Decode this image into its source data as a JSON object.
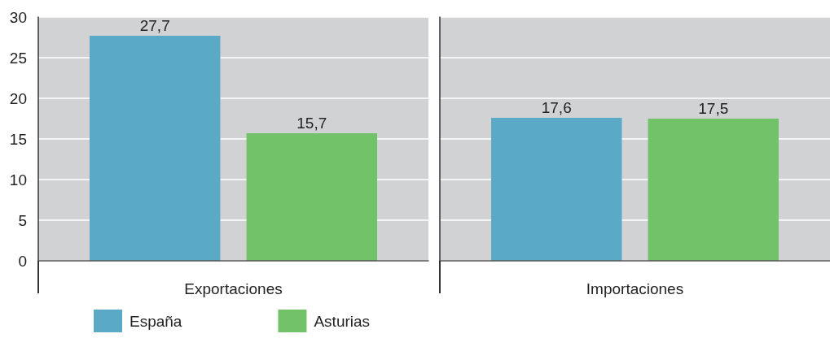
{
  "chart_data": {
    "type": "bar",
    "categories": [
      "Exportaciones",
      "Importaciones"
    ],
    "series": [
      {
        "name": "España",
        "color": "#5aa9c6",
        "values": [
          27.7,
          17.6
        ],
        "value_labels": [
          "27,7",
          "17,6"
        ]
      },
      {
        "name": "Asturias",
        "color": "#72c269",
        "values": [
          15.7,
          17.5
        ],
        "value_labels": [
          "15,7",
          "17,5"
        ]
      }
    ],
    "ylim": [
      0,
      30
    ],
    "yticks": [
      0,
      5,
      10,
      15,
      20,
      25,
      30
    ],
    "grid": "y",
    "legend": "bottom left",
    "bands": [
      {
        "axis": "x",
        "from": "Exportaciones",
        "to": "Exportaciones",
        "color": "#d1d2d4"
      },
      {
        "axis": "x",
        "from": "Importaciones",
        "to": "Importaciones",
        "color": "#d1d2d4"
      }
    ]
  }
}
